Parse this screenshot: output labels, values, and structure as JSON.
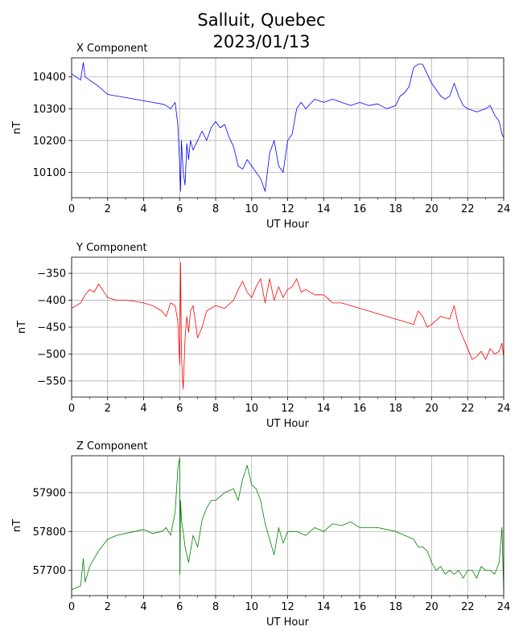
{
  "figure": {
    "title_line1": "Salluit, Quebec",
    "title_line2": "2023/01/13"
  },
  "chart_data": [
    {
      "type": "line",
      "title": "X Component",
      "xlabel": "UT Hour",
      "ylabel": "nT",
      "color": "#0000ff",
      "xlim": [
        0,
        24
      ],
      "ylim": [
        10020,
        10460
      ],
      "xticks": [
        0,
        2,
        4,
        6,
        8,
        10,
        12,
        14,
        16,
        18,
        20,
        22,
        24
      ],
      "yticks": [
        10100,
        10200,
        10300,
        10400
      ],
      "grid": true,
      "x": [
        0,
        0.25,
        0.5,
        0.65,
        0.75,
        1.0,
        1.5,
        2.0,
        3.0,
        4.0,
        4.5,
        5.0,
        5.25,
        5.5,
        5.75,
        5.9,
        6.0,
        6.05,
        6.1,
        6.2,
        6.3,
        6.4,
        6.5,
        6.6,
        6.75,
        7.0,
        7.25,
        7.5,
        7.75,
        8.0,
        8.25,
        8.5,
        8.75,
        9.0,
        9.25,
        9.5,
        9.75,
        10.0,
        10.25,
        10.5,
        10.75,
        11.0,
        11.25,
        11.5,
        11.75,
        12.0,
        12.25,
        12.5,
        12.75,
        13.0,
        13.5,
        14.0,
        14.5,
        15.0,
        15.5,
        16.0,
        16.5,
        17.0,
        17.5,
        18.0,
        18.25,
        18.5,
        18.75,
        19.0,
        19.25,
        19.5,
        19.75,
        20.0,
        20.25,
        20.5,
        20.75,
        21.0,
        21.25,
        21.5,
        21.75,
        22.0,
        22.5,
        23.0,
        23.25,
        23.5,
        23.75,
        23.9,
        24.0
      ],
      "y": [
        10410,
        10400,
        10390,
        10445,
        10400,
        10390,
        10370,
        10345,
        10335,
        10325,
        10320,
        10315,
        10310,
        10300,
        10320,
        10250,
        10130,
        10040,
        10200,
        10100,
        10060,
        10190,
        10140,
        10200,
        10170,
        10200,
        10230,
        10200,
        10240,
        10260,
        10240,
        10250,
        10210,
        10180,
        10120,
        10110,
        10140,
        10120,
        10100,
        10080,
        10040,
        10160,
        10200,
        10120,
        10100,
        10200,
        10220,
        10300,
        10320,
        10300,
        10330,
        10320,
        10330,
        10320,
        10310,
        10320,
        10310,
        10315,
        10300,
        10310,
        10340,
        10350,
        10370,
        10430,
        10440,
        10440,
        10410,
        10380,
        10360,
        10340,
        10330,
        10340,
        10380,
        10340,
        10310,
        10300,
        10290,
        10300,
        10310,
        10280,
        10260,
        10220,
        10210
      ]
    },
    {
      "type": "line",
      "title": "Y Component",
      "xlabel": "UT Hour",
      "ylabel": "nT",
      "color": "#ff0000",
      "xlim": [
        0,
        24
      ],
      "ylim": [
        -580,
        -320
      ],
      "xticks": [
        0,
        2,
        4,
        6,
        8,
        10,
        12,
        14,
        16,
        18,
        20,
        22,
        24
      ],
      "yticks": [
        -350,
        -400,
        -450,
        -500,
        -550
      ],
      "grid": true,
      "x": [
        0,
        0.25,
        0.5,
        0.75,
        1.0,
        1.25,
        1.5,
        2.0,
        2.5,
        3.0,
        3.5,
        4.0,
        4.5,
        5.0,
        5.25,
        5.5,
        5.75,
        5.9,
        6.0,
        6.05,
        6.1,
        6.15,
        6.2,
        6.3,
        6.4,
        6.5,
        6.6,
        6.75,
        7.0,
        7.25,
        7.5,
        8.0,
        8.5,
        9.0,
        9.25,
        9.5,
        9.75,
        10.0,
        10.25,
        10.5,
        10.75,
        11.0,
        11.25,
        11.5,
        11.75,
        12.0,
        12.25,
        12.5,
        12.75,
        13.0,
        13.5,
        14.0,
        14.5,
        15.0,
        15.5,
        16.0,
        16.5,
        17.0,
        17.5,
        18.0,
        18.5,
        19.0,
        19.25,
        19.5,
        19.75,
        20.0,
        20.5,
        21.0,
        21.25,
        21.5,
        21.75,
        22.0,
        22.25,
        22.5,
        22.75,
        23.0,
        23.25,
        23.5,
        23.75,
        23.9,
        24.0
      ],
      "y": [
        -415,
        -410,
        -405,
        -390,
        -380,
        -385,
        -370,
        -395,
        -400,
        -400,
        -402,
        -405,
        -410,
        -420,
        -430,
        -405,
        -410,
        -440,
        -520,
        -330,
        -500,
        -540,
        -565,
        -470,
        -430,
        -460,
        -420,
        -410,
        -470,
        -450,
        -420,
        -410,
        -415,
        -400,
        -380,
        -365,
        -385,
        -395,
        -375,
        -360,
        -405,
        -360,
        -400,
        -375,
        -395,
        -380,
        -375,
        -360,
        -385,
        -380,
        -390,
        -390,
        -405,
        -405,
        -410,
        -415,
        -420,
        -425,
        -430,
        -435,
        -440,
        -445,
        -420,
        -430,
        -450,
        -445,
        -430,
        -435,
        -410,
        -450,
        -470,
        -490,
        -510,
        -505,
        -495,
        -510,
        -490,
        -500,
        -495,
        -480,
        -505
      ]
    },
    {
      "type": "line",
      "title": "Z Component",
      "xlabel": "UT Hour",
      "ylabel": "nT",
      "color": "#008000",
      "xlim": [
        0,
        24
      ],
      "ylim": [
        57635,
        57995
      ],
      "xticks": [
        0,
        2,
        4,
        6,
        8,
        10,
        12,
        14,
        16,
        18,
        20,
        22,
        24
      ],
      "yticks": [
        57700,
        57800,
        57900
      ],
      "grid": true,
      "x": [
        0,
        0.25,
        0.5,
        0.65,
        0.75,
        1.0,
        1.25,
        1.5,
        2.0,
        2.5,
        3.0,
        3.5,
        4.0,
        4.5,
        5.0,
        5.25,
        5.5,
        5.75,
        5.9,
        6.0,
        6.02,
        6.05,
        6.1,
        6.2,
        6.3,
        6.5,
        6.75,
        7.0,
        7.25,
        7.5,
        7.75,
        8.0,
        8.5,
        9.0,
        9.25,
        9.5,
        9.75,
        10.0,
        10.25,
        10.5,
        10.75,
        11.0,
        11.25,
        11.5,
        11.75,
        12.0,
        12.5,
        13.0,
        13.5,
        14.0,
        14.5,
        15.0,
        15.5,
        16.0,
        16.5,
        17.0,
        17.5,
        18.0,
        18.5,
        19.0,
        19.25,
        19.5,
        19.75,
        20.0,
        20.25,
        20.5,
        20.75,
        21.0,
        21.25,
        21.5,
        21.75,
        22.0,
        22.25,
        22.5,
        22.75,
        23.0,
        23.25,
        23.5,
        23.75,
        23.9,
        24.0
      ],
      "y": [
        57650,
        57655,
        57660,
        57730,
        57670,
        57710,
        57730,
        57750,
        57780,
        57790,
        57795,
        57800,
        57805,
        57795,
        57800,
        57810,
        57790,
        57850,
        57960,
        57990,
        57690,
        57880,
        57830,
        57800,
        57760,
        57720,
        57790,
        57760,
        57830,
        57860,
        57880,
        57880,
        57900,
        57910,
        57880,
        57935,
        57970,
        57920,
        57910,
        57880,
        57820,
        57780,
        57740,
        57810,
        57770,
        57800,
        57800,
        57790,
        57810,
        57800,
        57820,
        57815,
        57825,
        57810,
        57810,
        57810,
        57805,
        57800,
        57790,
        57780,
        57760,
        57760,
        57750,
        57720,
        57700,
        57710,
        57690,
        57700,
        57690,
        57700,
        57680,
        57700,
        57700,
        57680,
        57710,
        57700,
        57700,
        57690,
        57720,
        57810,
        57650
      ]
    }
  ]
}
